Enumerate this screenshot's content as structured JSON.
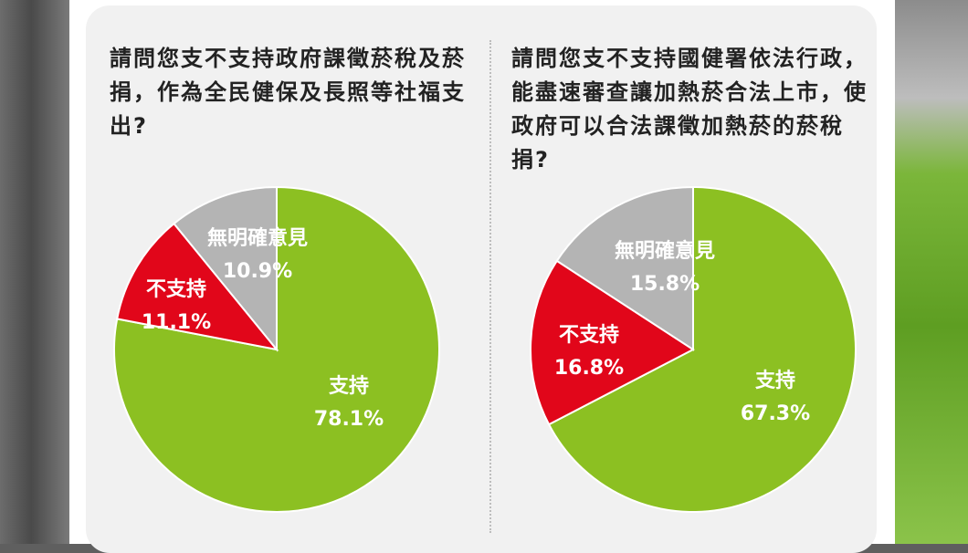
{
  "colors": {
    "support": "#8cc022",
    "oppose": "#e1061a",
    "no_opinion": "#b4b4b4"
  },
  "questions": [
    {
      "text": "請問您支不支持政府課徵菸稅及菸捐，作為全民健保及長照等社福支出?"
    },
    {
      "text": "請問您支不支持國健署依法行政，能盡速審查讓加熱菸合法上市，使政府可以合法課徵加熱菸的菸稅捐?"
    }
  ],
  "chart_data": [
    {
      "type": "pie",
      "slices": [
        {
          "name": "支持",
          "value": 78.1,
          "label": "78.1%"
        },
        {
          "name": "不支持",
          "value": 11.1,
          "label": "11.1%"
        },
        {
          "name": "無明確意見",
          "value": 10.9,
          "label": "10.9%"
        }
      ]
    },
    {
      "type": "pie",
      "slices": [
        {
          "name": "支持",
          "value": 67.3,
          "label": "67.3%"
        },
        {
          "name": "不支持",
          "value": 16.8,
          "label": "16.8%"
        },
        {
          "name": "無明確意見",
          "value": 15.8,
          "label": "15.8%"
        }
      ]
    }
  ]
}
